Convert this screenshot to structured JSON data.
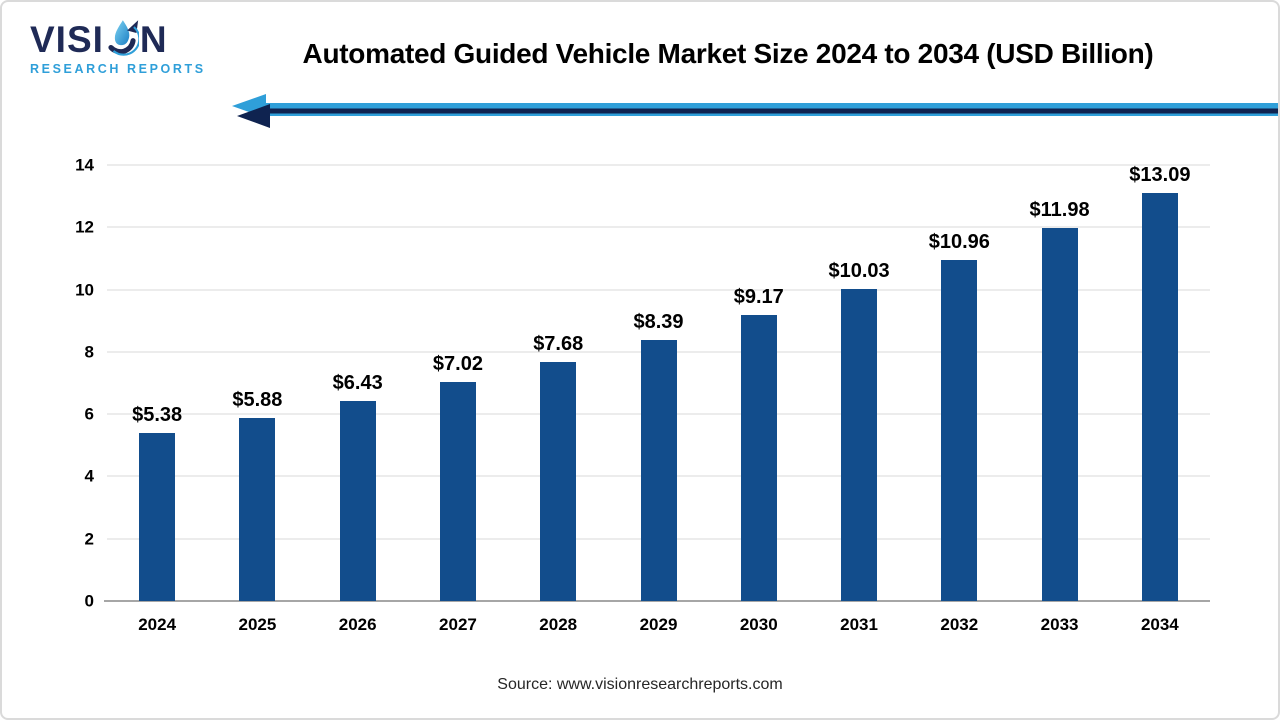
{
  "logo": {
    "brand_prefix": "VISI",
    "brand_suffix": "N",
    "subtitle": "RESEARCH REPORTS"
  },
  "header": {
    "title": "Automated Guided Vehicle Market Size 2024 to 2034 (USD Billion)"
  },
  "footer": {
    "source": "Source: www.visionresearchreports.com"
  },
  "colors": {
    "bar": "#124D8C",
    "lightblue": "#2F9FD9",
    "navy": "#1F2A56",
    "arrownavy": "#0F2350",
    "grid": "#ECECEC",
    "axis": "#A6A6A6"
  },
  "chart_data": {
    "type": "bar",
    "title": "Automated Guided Vehicle Market Size 2024 to 2034 (USD Billion)",
    "categories": [
      "2024",
      "2025",
      "2026",
      "2027",
      "2028",
      "2029",
      "2030",
      "2031",
      "2032",
      "2033",
      "2034"
    ],
    "values": [
      5.38,
      5.88,
      6.43,
      7.02,
      7.68,
      8.39,
      9.17,
      10.03,
      10.96,
      11.98,
      13.09
    ],
    "data_labels": [
      "$5.38",
      "$5.88",
      "$6.43",
      "$7.02",
      "$7.68",
      "$8.39",
      "$9.17",
      "$10.03",
      "$10.96",
      "$11.98",
      "$13.09"
    ],
    "xlabel": "",
    "ylabel": "",
    "ylim": [
      0,
      14
    ],
    "yticks": [
      0,
      2,
      4,
      6,
      8,
      10,
      12,
      14
    ],
    "grid": true,
    "legend": false,
    "bar_color": "#124D8C",
    "source": "Source: www.visionresearchreports.com"
  }
}
